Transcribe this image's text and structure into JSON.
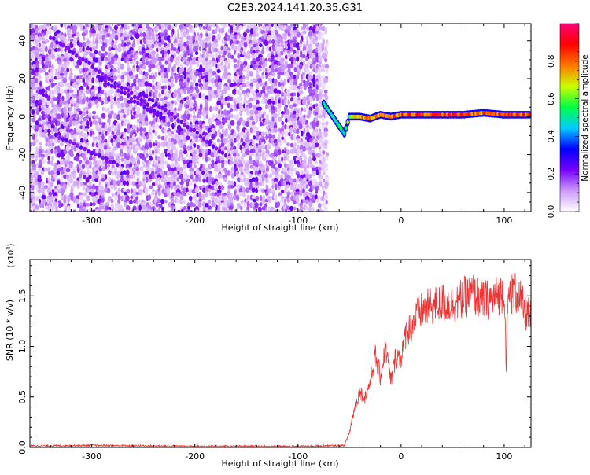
{
  "title": "C2E3.2024.141.20.35.G31",
  "chart_data": [
    {
      "type": "heatmap",
      "xlabel": "Height of straight line (km)",
      "ylabel": "Frequency (Hz)",
      "xlim": [
        -360,
        126
      ],
      "ylim": [
        -50,
        49
      ],
      "x_ticks": [
        -300,
        -200,
        -100,
        0,
        100
      ],
      "x_tick_labels": [
        "-300",
        "-200",
        "-100",
        "0",
        "100"
      ],
      "y_ticks": [
        -40,
        -20,
        0,
        20,
        40
      ],
      "y_tick_labels": [
        "-40",
        "-20",
        "0",
        "20",
        "40"
      ],
      "colorbar": {
        "label": "Normalized spectral amplitude",
        "range": [
          0.0,
          1.0
        ],
        "ticks": [
          0.0,
          0.2,
          0.4,
          0.6,
          0.8
        ],
        "tick_labels": [
          "0.0",
          "0.2",
          "0.4",
          "0.6",
          "0.8"
        ],
        "colors": [
          "#ffffff",
          "#cc99ff",
          "#7700ff",
          "#0000ff",
          "#00ccff",
          "#00ff44",
          "#ccff00",
          "#ff7700",
          "#ff0000",
          "#ff0077"
        ]
      },
      "noise_region": {
        "x_range": [
          -360,
          -72
        ],
        "y_range": [
          -50,
          49
        ],
        "typical_amplitude": 0.15
      },
      "signal_track": {
        "x": [
          -75,
          -70,
          -65,
          -60,
          -55,
          -50,
          -40,
          -30,
          -20,
          -10,
          0,
          20,
          40,
          60,
          80,
          100,
          126
        ],
        "y": [
          7,
          3,
          -1,
          -5,
          -9,
          0,
          0,
          -1,
          1,
          0,
          1,
          1,
          1,
          1,
          2,
          1,
          1
        ],
        "amplitude": [
          0.45,
          0.55,
          0.5,
          0.5,
          0.5,
          0.6,
          0.8,
          0.75,
          0.8,
          0.75,
          0.85,
          0.85,
          0.85,
          0.85,
          0.8,
          0.85,
          0.8
        ]
      },
      "diagonal_streaks": [
        {
          "x": [
            -340,
            -230
          ],
          "y": [
            42,
            0
          ]
        },
        {
          "x": [
            -250,
            -170
          ],
          "y": [
            12,
            -20
          ]
        },
        {
          "x": [
            -335,
            -275
          ],
          "y": [
            -10,
            -25
          ]
        },
        {
          "x": [
            -290,
            -230
          ],
          "y": [
            20,
            -2
          ]
        }
      ]
    },
    {
      "type": "line",
      "xlabel": "Height of straight line (km)",
      "ylabel": "SNR (10 * v/v)",
      "y_multiplier_label": "(x10",
      "y_multiplier_exp": "4",
      "y_multiplier_close": ")",
      "xlim": [
        -360,
        126
      ],
      "ylim": [
        0,
        18600
      ],
      "x_ticks": [
        -300,
        -200,
        -100,
        0,
        100
      ],
      "x_tick_labels": [
        "-300",
        "-200",
        "-100",
        "0",
        "100"
      ],
      "y_ticks": [
        0,
        5000,
        10000,
        15000
      ],
      "y_tick_labels": [
        "0.0",
        "0.5",
        "1.0",
        "1.5"
      ],
      "line_color": "#ee3333",
      "series": [
        {
          "x": [
            -360,
            -300,
            -200,
            -100,
            -55,
            -50,
            -45,
            -40,
            -35,
            -30,
            -25,
            -20,
            -15,
            -10,
            -5,
            0,
            5,
            10,
            15,
            20,
            30,
            40,
            50,
            60,
            70,
            80,
            90,
            100,
            102,
            104,
            110,
            115,
            120,
            126
          ],
          "y": [
            150,
            200,
            120,
            100,
            200,
            1500,
            4000,
            5500,
            5000,
            6500,
            9000,
            7000,
            10000,
            6500,
            9000,
            9000,
            11500,
            12000,
            13000,
            13500,
            14000,
            14300,
            14200,
            14800,
            15200,
            14500,
            14800,
            15500,
            8500,
            15000,
            15400,
            14800,
            13500,
            12800
          ]
        }
      ]
    }
  ]
}
